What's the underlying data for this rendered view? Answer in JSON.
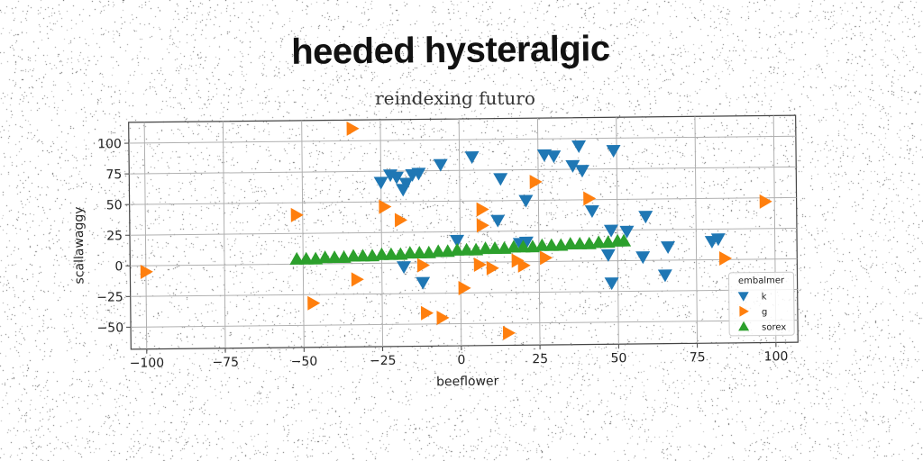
{
  "header": {
    "title": "heeded hysteralgic"
  },
  "chart_data": {
    "type": "scatter",
    "title": "reindexing futuro",
    "xlabel": "beeflower",
    "ylabel": "scallawaggy",
    "xlim": [
      -105,
      107
    ],
    "ylim": [
      -68,
      117
    ],
    "xticks": [
      -100,
      -75,
      -50,
      -25,
      0,
      25,
      50,
      75,
      100
    ],
    "yticks": [
      -50,
      -25,
      0,
      25,
      50,
      75,
      100
    ],
    "grid": true,
    "legend": {
      "title": "embalmer",
      "placement": "lower-right"
    },
    "series": [
      {
        "name": "k",
        "marker": "triangle-down",
        "color": "#1f77b4",
        "points": [
          [
            -25,
            66
          ],
          [
            -22,
            72
          ],
          [
            -20,
            70
          ],
          [
            -18,
            60
          ],
          [
            -17,
            65
          ],
          [
            -15,
            72
          ],
          [
            -13,
            73
          ],
          [
            -6,
            80
          ],
          [
            4,
            86
          ],
          [
            13,
            68
          ],
          [
            21,
            50
          ],
          [
            27,
            87
          ],
          [
            30,
            86
          ],
          [
            38,
            94
          ],
          [
            36,
            78
          ],
          [
            39,
            74
          ],
          [
            49,
            90
          ],
          [
            42,
            41
          ],
          [
            12,
            34
          ],
          [
            -1,
            18
          ],
          [
            21,
            16
          ],
          [
            19,
            15
          ],
          [
            48,
            25
          ],
          [
            53,
            24
          ],
          [
            59,
            36
          ],
          [
            66,
            11
          ],
          [
            58,
            3
          ],
          [
            47,
            5
          ],
          [
            -18,
            -3
          ],
          [
            -12,
            -16
          ],
          [
            48,
            -18
          ],
          [
            65,
            -12
          ],
          [
            80,
            15
          ],
          [
            82,
            17
          ]
        ]
      },
      {
        "name": "g",
        "marker": "triangle-right",
        "color": "#ff7f0e",
        "points": [
          [
            -34,
            110
          ],
          [
            -52,
            40
          ],
          [
            -24,
            46
          ],
          [
            -19,
            35
          ],
          [
            7,
            43
          ],
          [
            7,
            30
          ],
          [
            41,
            51
          ],
          [
            24,
            65
          ],
          [
            -100,
            -5
          ],
          [
            -33,
            -13
          ],
          [
            -47,
            -32
          ],
          [
            -12,
            -2
          ],
          [
            6,
            -2
          ],
          [
            10,
            -5
          ],
          [
            20,
            -3
          ],
          [
            18,
            1
          ],
          [
            27,
            3
          ],
          [
            1,
            -21
          ],
          [
            -11,
            -41
          ],
          [
            -6,
            -45
          ],
          [
            15,
            -58
          ],
          [
            84,
            1
          ],
          [
            97,
            47
          ]
        ]
      },
      {
        "name": "sorex",
        "marker": "triangle-up",
        "color": "#2ca02c",
        "points": [
          [
            -52,
            4
          ],
          [
            -49,
            4
          ],
          [
            -46,
            4
          ],
          [
            -43,
            5
          ],
          [
            -40,
            5
          ],
          [
            -37,
            5
          ],
          [
            -34,
            6
          ],
          [
            -31,
            6
          ],
          [
            -28,
            6
          ],
          [
            -25,
            7
          ],
          [
            -22,
            7
          ],
          [
            -19,
            7
          ],
          [
            -16,
            8
          ],
          [
            -13,
            8
          ],
          [
            -10,
            8
          ],
          [
            -7,
            9
          ],
          [
            -4,
            9
          ],
          [
            -1,
            10
          ],
          [
            2,
            10
          ],
          [
            5,
            10
          ],
          [
            8,
            11
          ],
          [
            11,
            11
          ],
          [
            14,
            11
          ],
          [
            17,
            12
          ],
          [
            20,
            12
          ],
          [
            23,
            12
          ],
          [
            26,
            13
          ],
          [
            29,
            13
          ],
          [
            32,
            13
          ],
          [
            35,
            14
          ],
          [
            38,
            14
          ],
          [
            41,
            14
          ],
          [
            44,
            15
          ],
          [
            47,
            15
          ],
          [
            50,
            16
          ],
          [
            52,
            16
          ]
        ]
      }
    ]
  }
}
